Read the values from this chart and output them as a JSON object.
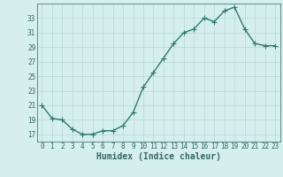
{
  "x": [
    0,
    1,
    2,
    3,
    4,
    5,
    6,
    7,
    8,
    9,
    10,
    11,
    12,
    13,
    14,
    15,
    16,
    17,
    18,
    19,
    20,
    21,
    22,
    23
  ],
  "y": [
    21,
    19.2,
    19,
    17.7,
    17,
    17,
    17.5,
    17.5,
    18.2,
    20,
    23.5,
    25.5,
    27.5,
    29.5,
    31,
    31.5,
    33,
    32.5,
    34,
    34.5,
    31.5,
    29.5,
    29.2,
    29.2
  ],
  "line_color": "#2e7b6e",
  "marker": "+",
  "marker_size": 4,
  "marker_lw": 0.8,
  "line_width": 1.0,
  "bg_color": "#d5eeee",
  "grid_color": "#b8d8d8",
  "xlabel": "Humidex (Indice chaleur)",
  "ylim": [
    16,
    35
  ],
  "yticks": [
    17,
    19,
    21,
    23,
    25,
    27,
    29,
    31,
    33
  ],
  "xlim": [
    -0.5,
    23.5
  ],
  "xticks": [
    0,
    1,
    2,
    3,
    4,
    5,
    6,
    7,
    8,
    9,
    10,
    11,
    12,
    13,
    14,
    15,
    16,
    17,
    18,
    19,
    20,
    21,
    22,
    23
  ],
  "tick_color": "#336666",
  "label_color": "#336666"
}
